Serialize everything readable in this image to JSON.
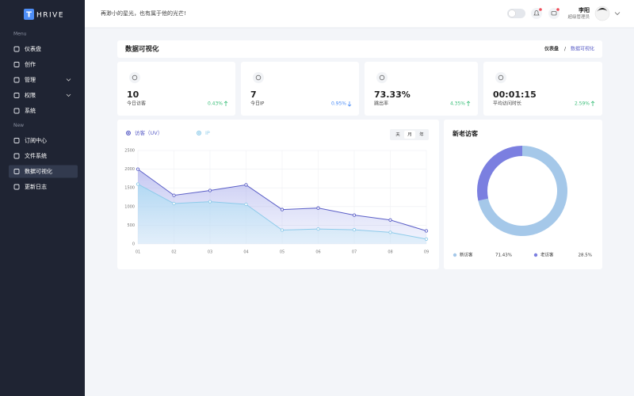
{
  "sidebar": {
    "logo_mark": "T",
    "logo_text": "HRIVE",
    "sections": [
      {
        "title": "Menu",
        "items": [
          {
            "label": "仪表盘"
          },
          {
            "label": "创作"
          },
          {
            "label": "管理",
            "expandable": true
          },
          {
            "label": "权限",
            "expandable": true
          },
          {
            "label": "系统"
          }
        ]
      },
      {
        "title": "New",
        "items": [
          {
            "label": "订阅中心"
          },
          {
            "label": "文件系统"
          },
          {
            "label": "数据可视化",
            "active": true
          },
          {
            "label": "更新日志"
          }
        ]
      }
    ]
  },
  "header": {
    "slogan": "再渺小的星光，也有属于他的光芒!",
    "user_name": "李阳",
    "user_role": "超级管理员"
  },
  "breadcrumb": {
    "title": "数据可视化",
    "path": [
      "仪表盘",
      "数据可视化"
    ],
    "separator": "/"
  },
  "stats": [
    {
      "value": "10",
      "label": "今日访客",
      "change": "0.43%",
      "trend": "up"
    },
    {
      "value": "7",
      "label": "今日IP",
      "change": "0.95%",
      "trend": "down"
    },
    {
      "value": "73.33%",
      "label": "跳出率",
      "change": "4.35%",
      "trend": "up"
    },
    {
      "value": "00:01:15",
      "label": "平均访问时长",
      "change": "2.59%",
      "trend": "up"
    }
  ],
  "period_options": [
    "天",
    "月",
    "年"
  ],
  "chart_data": [
    {
      "type": "line",
      "categories": [
        "01",
        "02",
        "03",
        "04",
        "05",
        "06",
        "07",
        "08",
        "09"
      ],
      "series": [
        {
          "name": "访客（UV）",
          "color": "#5b5fc7",
          "values": [
            2000,
            1300,
            1430,
            1580,
            920,
            960,
            770,
            640,
            350
          ]
        },
        {
          "name": "IP",
          "color": "#8ecbea",
          "values": [
            1600,
            1080,
            1130,
            1060,
            370,
            400,
            380,
            310,
            130
          ]
        }
      ],
      "ylim": [
        0,
        2500
      ],
      "yticks": [
        0,
        500,
        1000,
        1500,
        2000,
        2500
      ],
      "grid": true,
      "area": true,
      "legend": "top-left"
    },
    {
      "type": "donut",
      "title": "新老访客",
      "categories": [
        "新访客",
        "老访客"
      ],
      "values": [
        71.43,
        28.5
      ],
      "value_labels": [
        "71.43%",
        "28.5%"
      ],
      "colors": [
        "#a5c8e9",
        "#7b7fe0"
      ],
      "legend": "bottom"
    }
  ]
}
